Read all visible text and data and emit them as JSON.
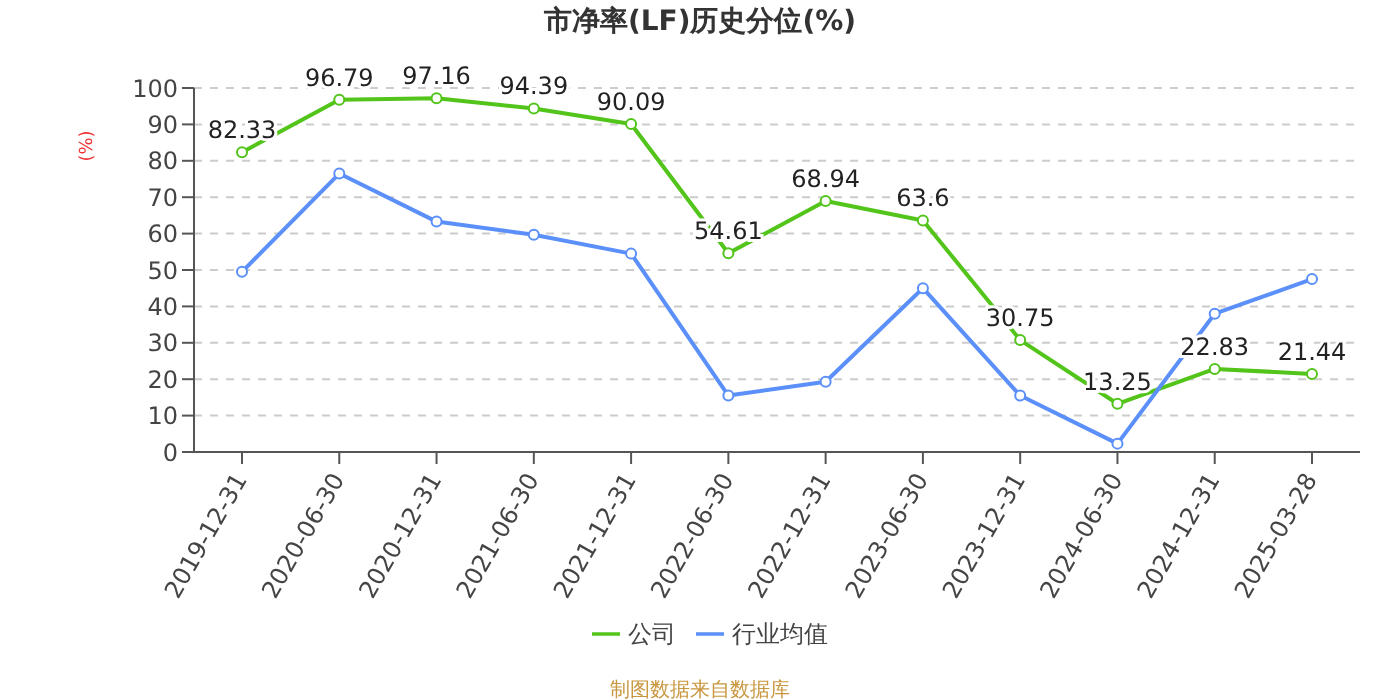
{
  "chart_data": {
    "type": "line",
    "title": "市净率(LF)历史分位(%)",
    "ylabel": "(%)",
    "categories": [
      "2019-12-31",
      "2020-06-30",
      "2020-12-31",
      "2021-06-30",
      "2021-12-31",
      "2022-06-30",
      "2022-12-31",
      "2023-06-30",
      "2023-12-31",
      "2024-06-30",
      "2024-12-31",
      "2025-03-28"
    ],
    "series": [
      {
        "name": "公司",
        "color": "#52c41a",
        "values": [
          82.33,
          96.79,
          97.16,
          94.39,
          90.09,
          54.61,
          68.94,
          63.6,
          30.75,
          13.25,
          22.83,
          21.44
        ],
        "value_labels": [
          "82.33",
          "96.79",
          "97.16",
          "94.39",
          "90.09",
          "54.61",
          "68.94",
          "63.6",
          "30.75",
          "13.25",
          "22.83",
          "21.44"
        ]
      },
      {
        "name": "行业均值",
        "color": "#5b8ff9",
        "values": [
          49.5,
          76.5,
          63.3,
          59.7,
          54.5,
          15.5,
          19.3,
          45,
          15.5,
          2.3,
          38,
          47.5
        ]
      }
    ],
    "ylim": [
      0,
      100
    ],
    "yticks": [
      0,
      10,
      20,
      30,
      40,
      50,
      60,
      70,
      80,
      90,
      100
    ],
    "grid": "y",
    "legend": "bottom",
    "marker": "circle",
    "line_style": "solid",
    "annotations": [
      "制图数据来自数据库"
    ]
  }
}
